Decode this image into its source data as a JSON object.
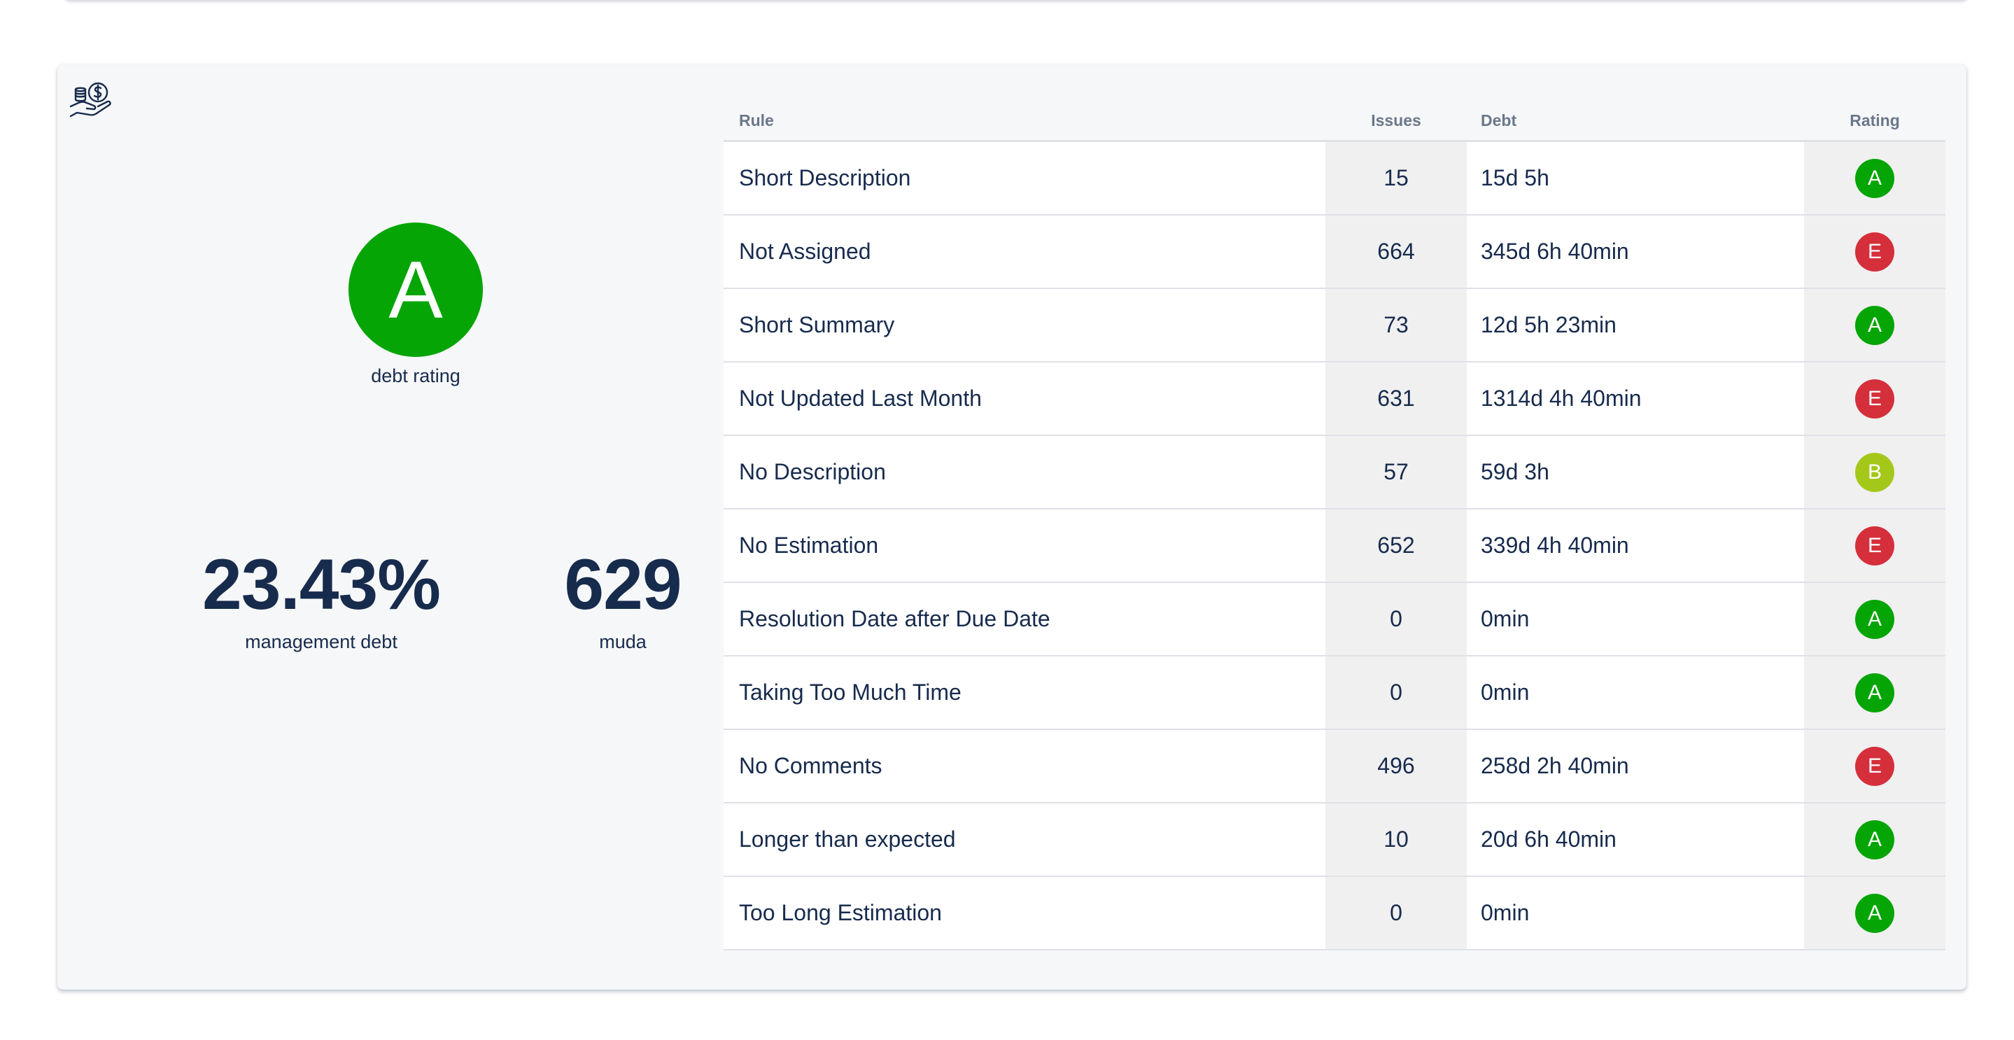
{
  "summary": {
    "debt_rating": "A",
    "debt_rating_caption": "debt rating",
    "debt_rating_color": "#04a504",
    "management_debt_value": "23.43%",
    "management_debt_label": "management debt",
    "muda_value": "629",
    "muda_label": "muda"
  },
  "icons": {
    "header_icon": "money-hand-icon"
  },
  "rating_colors": {
    "A": "#04a504",
    "B": "#a4c81a",
    "E": "#d52f3c"
  },
  "table": {
    "headers": {
      "rule": "Rule",
      "issues": "Issues",
      "debt": "Debt",
      "rating": "Rating"
    },
    "rows": [
      {
        "rule": "Short Description",
        "issues": "15",
        "debt": "15d 5h",
        "rating": "A"
      },
      {
        "rule": "Not Assigned",
        "issues": "664",
        "debt": "345d 6h 40min",
        "rating": "E"
      },
      {
        "rule": "Short Summary",
        "issues": "73",
        "debt": "12d 5h 23min",
        "rating": "A"
      },
      {
        "rule": "Not Updated Last Month",
        "issues": "631",
        "debt": "1314d 4h 40min",
        "rating": "E"
      },
      {
        "rule": "No Description",
        "issues": "57",
        "debt": "59d 3h",
        "rating": "B"
      },
      {
        "rule": "No Estimation",
        "issues": "652",
        "debt": "339d 4h 40min",
        "rating": "E"
      },
      {
        "rule": "Resolution Date after Due Date",
        "issues": "0",
        "debt": "0min",
        "rating": "A"
      },
      {
        "rule": "Taking Too Much Time",
        "issues": "0",
        "debt": "0min",
        "rating": "A"
      },
      {
        "rule": "No Comments",
        "issues": "496",
        "debt": "258d 2h 40min",
        "rating": "E"
      },
      {
        "rule": "Longer than expected",
        "issues": "10",
        "debt": "20d 6h 40min",
        "rating": "A"
      },
      {
        "rule": "Too Long Estimation",
        "issues": "0",
        "debt": "0min",
        "rating": "A"
      }
    ]
  }
}
